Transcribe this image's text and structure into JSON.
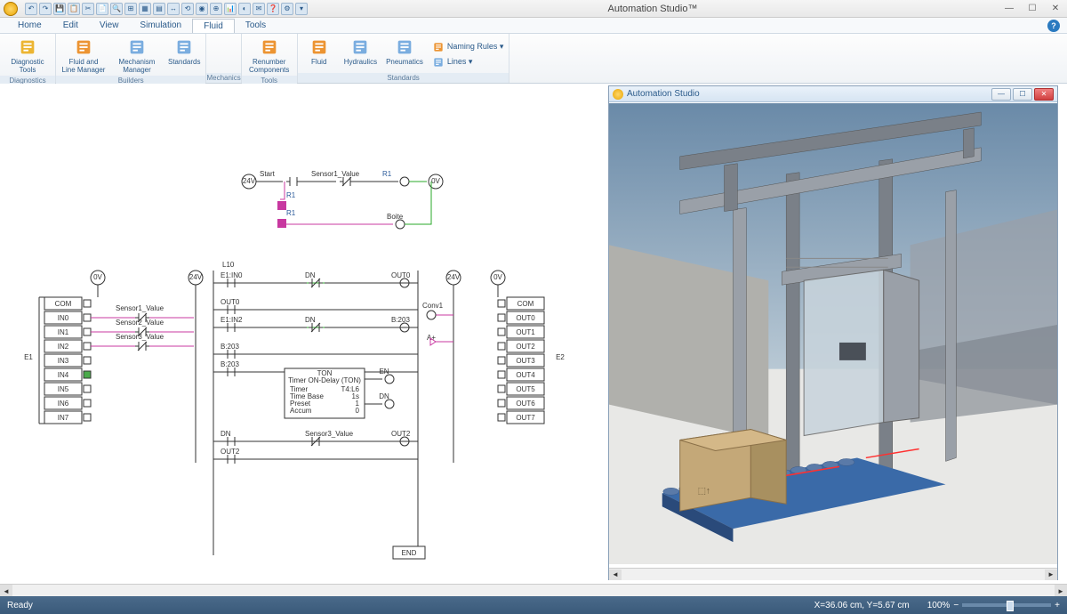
{
  "app": {
    "title": "Automation Studio™",
    "panel_title": "Automation Studio"
  },
  "menu_tabs": [
    "Home",
    "Edit",
    "View",
    "Simulation",
    "Fluid",
    "Tools"
  ],
  "active_tab": 4,
  "ribbon": {
    "groups": [
      {
        "label": "Diagnostics",
        "items": [
          {
            "label": "Diagnostic Tools",
            "icon_color": "#e8a400"
          }
        ]
      },
      {
        "label": "Builders",
        "items": [
          {
            "label": "Fluid and Line Manager",
            "icon_color": "#e87a00"
          },
          {
            "label": "Mechanism Manager",
            "icon_color": "#5a9ad8"
          },
          {
            "label": "Standards",
            "icon_color": "#5a9ad8"
          }
        ]
      },
      {
        "label": "Mechanics",
        "items": []
      },
      {
        "label": "Tools",
        "items": [
          {
            "label": "Renumber Components",
            "icon_color": "#e87a00"
          }
        ]
      },
      {
        "label": "Standards",
        "items": [
          {
            "label": "Fluid",
            "icon_color": "#e87a00"
          },
          {
            "label": "Hydraulics",
            "icon_color": "#5a9ad8"
          },
          {
            "label": "Pneumatics",
            "icon_color": "#5a9ad8"
          }
        ],
        "side": [
          {
            "label": "Naming Rules",
            "icon_color": "#e87a00"
          },
          {
            "label": "Lines",
            "icon_color": "#5a9ad8"
          }
        ]
      }
    ]
  },
  "diagram": {
    "top": {
      "v24": "24V",
      "start": "Start",
      "sensor1": "Sensor1_Value",
      "r1": "R1",
      "zero": "0V",
      "r1b": "R1",
      "r1c": "R1",
      "boite": "Boite"
    },
    "input_block": {
      "header": "E1",
      "zero": "0V",
      "v24": "24V",
      "rows": [
        "COM",
        "IN0",
        "IN1",
        "IN2",
        "IN3",
        "IN4",
        "IN5",
        "IN6",
        "IN7"
      ],
      "sensors": [
        "Sensor1_Value",
        "Sensor2_Value",
        "Sensor3_Value"
      ],
      "selected": 5
    },
    "ladder": {
      "label": "L10",
      "rungs": [
        {
          "left": "E1:IN0",
          "mid": "DN",
          "right": "OUT0"
        },
        {
          "left": "OUT0"
        },
        {
          "left": "E1:IN2",
          "mid": "DN",
          "right": "B:203"
        },
        {
          "left": "B:203"
        },
        {
          "left": "B:203",
          "block": "TON"
        },
        {
          "left": "DN",
          "mid": "Sensor3_Value",
          "right": "OUT2"
        },
        {
          "left": "OUT2"
        }
      ],
      "ton": {
        "title": "TON",
        "subtitle": "Timer ON-Delay (TON)",
        "rows": [
          [
            "Timer",
            "T4:L6"
          ],
          [
            "Time Base",
            "1s"
          ],
          [
            "Preset",
            "1"
          ],
          [
            "Accum",
            "0"
          ]
        ],
        "en": "EN",
        "dn": "DN"
      },
      "end": "END"
    },
    "output_block": {
      "header": "E2",
      "zero": "0V",
      "v24": "24V",
      "conv": "Conv1",
      "aplus": "A+",
      "rows": [
        "COM",
        "OUT0",
        "OUT1",
        "OUT2",
        "OUT3",
        "OUT4",
        "OUT5",
        "OUT6",
        "OUT7"
      ]
    }
  },
  "viewport": {
    "sky_top": "#6a8aa8",
    "sky_bottom": "#b8c8d4",
    "floor": "#e8e8e6",
    "wall": "#b0b0ac",
    "steel": "#7a8088",
    "steel_light": "#9aa0a8",
    "glass": "#c8d4dc",
    "conveyor": "#3a6aa8",
    "box": "#c4a878"
  },
  "status": {
    "ready": "Ready",
    "coords": "X=36.06 cm, Y=5.67 cm",
    "zoom": "100%"
  },
  "qat_count": 20
}
